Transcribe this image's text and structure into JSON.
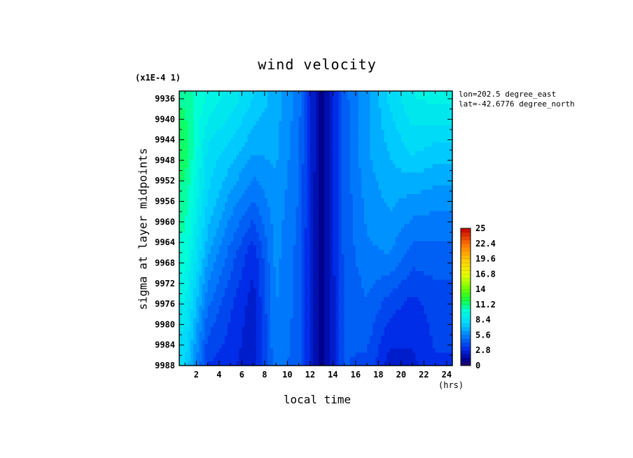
{
  "chart_data": {
    "type": "heatmap",
    "title": "wind velocity",
    "scale_note": "(x1E-4 1)",
    "xlabel": "local time",
    "x_unit": "(hrs)",
    "ylabel": "sigma at layer midpoints",
    "annotations": [
      "lon=202.5 degree_east",
      "lat=-42.6776 degree_north"
    ],
    "x_ticks": [
      "2",
      "4",
      "6",
      "8",
      "10",
      "12",
      "14",
      "16",
      "18",
      "20",
      "22",
      "24"
    ],
    "y_ticks": [
      "9936",
      "9940",
      "9944",
      "9948",
      "9952",
      "9956",
      "9960",
      "9964",
      "9968",
      "9972",
      "9976",
      "9980",
      "9984",
      "9988"
    ],
    "xlim": [
      0.5,
      24.5
    ],
    "ylim": [
      9934.5,
      9988
    ],
    "x": [
      1,
      3,
      5,
      7,
      9,
      11,
      13,
      15,
      17,
      19,
      21,
      23
    ],
    "y": [
      9936,
      9946,
      9956,
      9966,
      9976,
      9988
    ],
    "z": [
      [
        11.0,
        9.5,
        8.8,
        7.6,
        6.6,
        5.2,
        0.8,
        4.6,
        6.0,
        7.8,
        9.0,
        9.2
      ],
      [
        11.6,
        8.2,
        7.4,
        6.4,
        6.4,
        5.0,
        0.8,
        4.5,
        6.2,
        7.0,
        7.8,
        7.4
      ],
      [
        10.8,
        7.6,
        6.0,
        4.8,
        6.0,
        4.8,
        0.8,
        4.4,
        5.8,
        6.4,
        6.0,
        5.8
      ],
      [
        10.2,
        6.4,
        4.6,
        3.0,
        5.8,
        4.6,
        0.8,
        4.4,
        5.4,
        5.6,
        4.6,
        4.6
      ],
      [
        9.0,
        5.0,
        3.6,
        2.4,
        5.6,
        4.6,
        0.8,
        4.2,
        4.8,
        3.8,
        3.2,
        3.8
      ],
      [
        7.6,
        3.4,
        3.0,
        2.2,
        5.4,
        4.4,
        0.8,
        4.2,
        4.0,
        2.4,
        2.6,
        3.4
      ]
    ],
    "colorbar": {
      "labels": [
        "25",
        "22.4",
        "19.6",
        "16.8",
        "14",
        "11.2",
        "8.4",
        "5.6",
        "2.8",
        "0"
      ],
      "range": [
        0,
        25
      ]
    }
  }
}
